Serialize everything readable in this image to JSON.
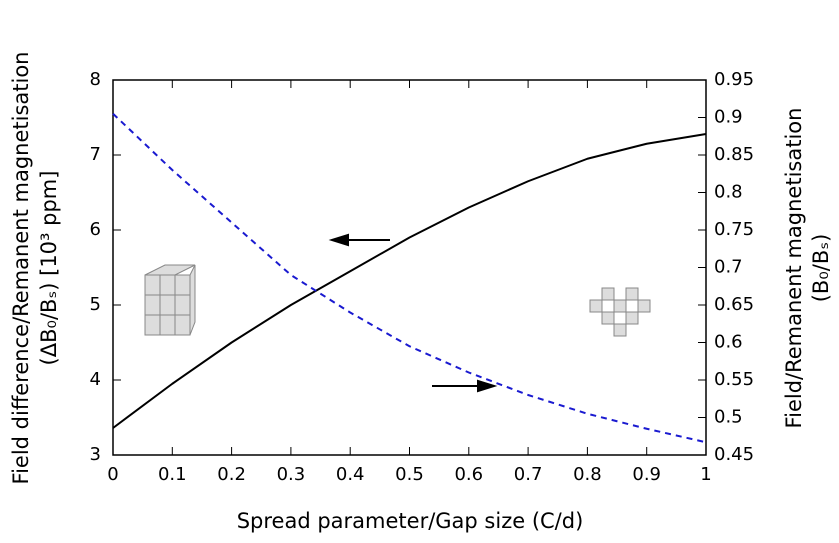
{
  "chart_data": {
    "type": "line",
    "x_label": "Spread parameter/Gap size (C/d)",
    "y_label": [
      "Field difference/Remanent magnetisation",
      "(ΔB₀/Bₛ) [10³ ppm]"
    ],
    "y2_label": [
      "Field/Remanent magnetisation",
      "(B₀/Bₛ)"
    ],
    "x": [
      0,
      0.1,
      0.2,
      0.3,
      0.4,
      0.5,
      0.6,
      0.7,
      0.8,
      0.9,
      1
    ],
    "series": [
      {
        "color": "#000000",
        "dash": false,
        "values": [
          3.36,
          3.95,
          4.5,
          5.0,
          5.45,
          5.9,
          6.3,
          6.65,
          6.95,
          7.15,
          7.28
        ]
      },
      {
        "color": "#1a1ad0",
        "dash": true,
        "axis": "y2",
        "values": [
          0.905,
          0.83,
          0.76,
          0.69,
          0.64,
          0.595,
          0.56,
          0.53,
          0.505,
          0.485,
          0.467
        ]
      }
    ],
    "xlim": [
      0,
      1
    ],
    "xticks": [
      0,
      0.1,
      0.2,
      0.3,
      0.4,
      0.5,
      0.6,
      0.7,
      0.8,
      0.9,
      1
    ],
    "ylim": [
      3,
      8
    ],
    "yticks": [
      3,
      4,
      5,
      6,
      7,
      8
    ],
    "y2lim": [
      0.45,
      0.95
    ],
    "y2ticks": [
      0.45,
      0.5,
      0.55,
      0.6,
      0.65,
      0.7,
      0.75,
      0.8,
      0.85,
      0.9,
      0.95
    ]
  }
}
